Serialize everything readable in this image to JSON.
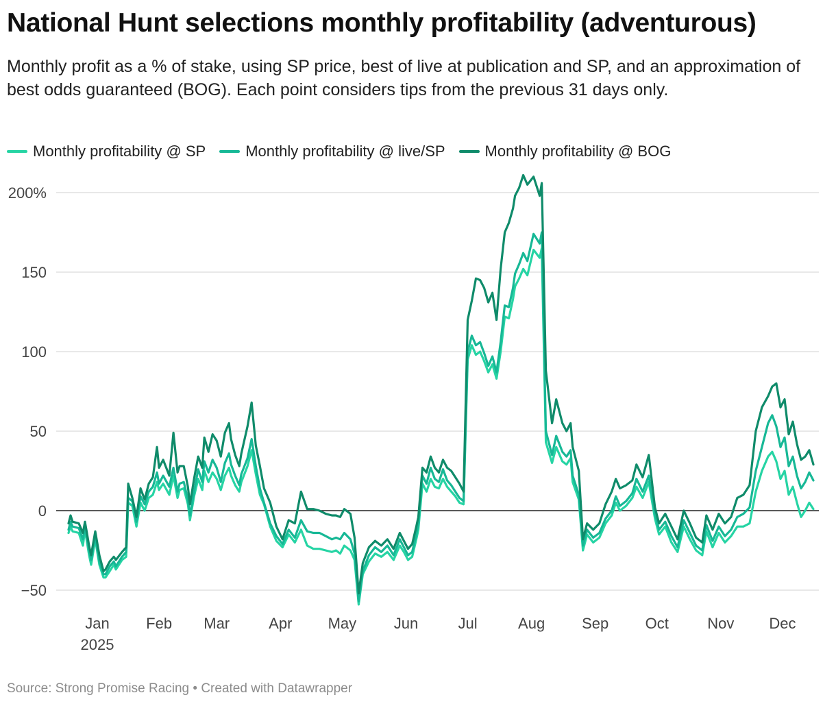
{
  "colors": {
    "sp": "#26d4a4",
    "live_sp": "#17b896",
    "bog": "#0f8b6a",
    "gridline": "#d9d9d9",
    "zero_line": "#222222"
  },
  "footer": {
    "source": "Source: Strong Promise Racing • Created with Datawrapper"
  },
  "chart_data": {
    "type": "line",
    "title": "National Hunt selections monthly profitability (adventurous)",
    "subtitle": "Monthly profit as a % of stake, using SP price, best of live at publication and SP, and an approximation of best odds guaranteed (BOG). Each point considers tips from the previous 31 days only.",
    "xlabel": "",
    "ylabel": "",
    "x_range_days": [
      0,
      363
    ],
    "ylim": [
      -55,
      215
    ],
    "y_ticks": [
      {
        "value": 200,
        "label": "200%"
      },
      {
        "value": 150,
        "label": "150"
      },
      {
        "value": 100,
        "label": "100"
      },
      {
        "value": 50,
        "label": "50"
      },
      {
        "value": 0,
        "label": "0"
      },
      {
        "value": -50,
        "label": "−50"
      }
    ],
    "x_ticks": [
      {
        "day": 14,
        "label": "Jan",
        "sublabel": "2025"
      },
      {
        "day": 44,
        "label": "Feb",
        "sublabel": ""
      },
      {
        "day": 72,
        "label": "Mar",
        "sublabel": ""
      },
      {
        "day": 103,
        "label": "Apr",
        "sublabel": ""
      },
      {
        "day": 133,
        "label": "May",
        "sublabel": ""
      },
      {
        "day": 164,
        "label": "Jun",
        "sublabel": ""
      },
      {
        "day": 194,
        "label": "Jul",
        "sublabel": ""
      },
      {
        "day": 225,
        "label": "Aug",
        "sublabel": ""
      },
      {
        "day": 256,
        "label": "Sep",
        "sublabel": ""
      },
      {
        "day": 286,
        "label": "Oct",
        "sublabel": ""
      },
      {
        "day": 317,
        "label": "Nov",
        "sublabel": ""
      },
      {
        "day": 347,
        "label": "Dec",
        "sublabel": ""
      }
    ],
    "x": [
      0,
      1,
      2,
      5,
      7,
      8,
      10,
      11,
      13,
      15,
      17,
      18,
      20,
      22,
      23,
      26,
      28,
      29,
      31,
      33,
      35,
      37,
      39,
      41,
      43,
      44,
      46,
      49,
      51,
      53,
      54,
      56,
      58,
      59,
      61,
      63,
      65,
      66,
      68,
      70,
      72,
      74,
      76,
      78,
      79,
      81,
      83,
      84,
      87,
      89,
      91,
      93,
      95,
      98,
      101,
      104,
      107,
      110,
      113,
      116,
      119,
      122,
      125,
      128,
      130,
      132,
      134,
      137,
      139,
      141,
      143,
      146,
      149,
      152,
      155,
      158,
      161,
      163,
      165,
      167,
      169,
      170,
      172,
      174,
      176,
      178,
      180,
      182,
      184,
      186,
      188,
      190,
      192,
      194,
      196,
      198,
      200,
      202,
      204,
      206,
      208,
      210,
      212,
      214,
      216,
      217,
      219,
      221,
      223,
      226,
      229,
      230,
      232,
      235,
      237,
      240,
      242,
      244,
      245,
      248,
      250,
      252,
      255,
      258,
      261,
      264,
      266,
      268,
      271,
      274,
      276,
      279,
      282,
      285,
      287,
      290,
      293,
      296,
      299,
      302,
      305,
      308,
      310,
      313,
      316,
      319,
      322,
      325,
      328,
      331,
      334,
      337,
      340,
      342,
      344,
      346,
      348,
      350,
      352,
      354,
      356,
      358,
      360,
      362
    ],
    "series": [
      {
        "name": "Monthly profitability @ SP",
        "color": "#26d4a4",
        "values": [
          -14,
          -10,
          -13,
          -14,
          -22,
          -12,
          -28,
          -34,
          -18,
          -34,
          -42,
          -42,
          -38,
          -34,
          -37,
          -31,
          -29,
          5,
          3,
          -10,
          5,
          0,
          8,
          10,
          18,
          13,
          17,
          10,
          22,
          8,
          13,
          14,
          4,
          -6,
          9,
          20,
          13,
          25,
          18,
          24,
          20,
          13,
          22,
          27,
          22,
          16,
          12,
          18,
          28,
          38,
          23,
          10,
          4,
          -10,
          -19,
          -23,
          -15,
          -20,
          -12,
          -22,
          -24,
          -24,
          -25,
          -26,
          -25,
          -27,
          -22,
          -25,
          -31,
          -59,
          -40,
          -32,
          -27,
          -29,
          -26,
          -31,
          -22,
          -26,
          -31,
          -29,
          -18,
          -12,
          17,
          12,
          20,
          15,
          14,
          20,
          15,
          12,
          9,
          5,
          4,
          95,
          104,
          98,
          100,
          94,
          87,
          92,
          83,
          100,
          122,
          121,
          133,
          141,
          146,
          152,
          148,
          164,
          159,
          165,
          43,
          30,
          40,
          31,
          29,
          33,
          18,
          7,
          -25,
          -15,
          -20,
          -17,
          -8,
          -3,
          5,
          0,
          3,
          8,
          15,
          8,
          18,
          -5,
          -15,
          -10,
          -20,
          -26,
          -10,
          -18,
          -25,
          -28,
          -13,
          -23,
          -14,
          -20,
          -16,
          -10,
          -10,
          -8,
          12,
          25,
          34,
          37,
          31,
          20,
          25,
          10,
          15,
          5,
          -4,
          0,
          5,
          1
        ]
      },
      {
        "name": "Monthly profitability @ live/SP",
        "color": "#17b896",
        "values": [
          -12,
          -7,
          -10,
          -11,
          -18,
          -10,
          -25,
          -31,
          -16,
          -32,
          -40,
          -40,
          -35,
          -32,
          -35,
          -29,
          -26,
          8,
          6,
          -7,
          9,
          4,
          12,
          15,
          24,
          17,
          22,
          15,
          27,
          12,
          17,
          18,
          7,
          -3,
          12,
          26,
          18,
          31,
          24,
          32,
          27,
          18,
          30,
          36,
          29,
          22,
          16,
          23,
          33,
          45,
          28,
          14,
          5,
          -8,
          -16,
          -21,
          -12,
          -17,
          -6,
          -13,
          -14,
          -14,
          -16,
          -18,
          -17,
          -18,
          -14,
          -18,
          -27,
          -57,
          -38,
          -28,
          -23,
          -26,
          -22,
          -28,
          -18,
          -23,
          -28,
          -26,
          -15,
          -8,
          22,
          17,
          27,
          20,
          18,
          26,
          19,
          16,
          12,
          8,
          6,
          100,
          110,
          104,
          106,
          99,
          91,
          97,
          87,
          106,
          129,
          128,
          140,
          149,
          155,
          162,
          157,
          174,
          168,
          175,
          50,
          35,
          47,
          37,
          34,
          38,
          22,
          10,
          -22,
          -12,
          -17,
          -14,
          -5,
          0,
          9,
          3,
          6,
          11,
          20,
          12,
          22,
          -2,
          -12,
          -7,
          -16,
          -23,
          -6,
          -14,
          -22,
          -25,
          -9,
          -19,
          -10,
          -16,
          -12,
          -4,
          -2,
          2,
          25,
          40,
          55,
          60,
          53,
          40,
          46,
          28,
          34,
          22,
          14,
          18,
          24,
          19
        ]
      },
      {
        "name": "Monthly profitability @ BOG",
        "color": "#0f8b6a",
        "values": [
          -8,
          -3,
          -7,
          -8,
          -14,
          -7,
          -22,
          -28,
          -13,
          -28,
          -38,
          -37,
          -32,
          -29,
          -31,
          -26,
          -23,
          17,
          8,
          -4,
          14,
          7,
          17,
          21,
          40,
          27,
          32,
          22,
          49,
          24,
          28,
          28,
          15,
          4,
          20,
          34,
          27,
          46,
          37,
          48,
          44,
          34,
          49,
          55,
          45,
          35,
          28,
          36,
          53,
          68,
          41,
          28,
          14,
          5,
          -10,
          -18,
          -6,
          -8,
          12,
          1,
          1,
          0,
          -2,
          -3,
          -3,
          -4,
          1,
          -2,
          -17,
          -52,
          -33,
          -23,
          -19,
          -22,
          -18,
          -24,
          -14,
          -19,
          -24,
          -21,
          -10,
          -4,
          27,
          24,
          34,
          27,
          24,
          32,
          27,
          25,
          21,
          17,
          12,
          120,
          132,
          146,
          145,
          140,
          131,
          137,
          120,
          152,
          175,
          181,
          190,
          198,
          203,
          211,
          205,
          210,
          198,
          206,
          88,
          55,
          70,
          55,
          50,
          55,
          40,
          25,
          -18,
          -8,
          -12,
          -8,
          4,
          12,
          20,
          14,
          16,
          19,
          29,
          21,
          35,
          2,
          -8,
          -2,
          -10,
          -18,
          0,
          -8,
          -17,
          -20,
          -3,
          -12,
          -2,
          -8,
          -4,
          8,
          10,
          16,
          50,
          65,
          72,
          78,
          80,
          65,
          70,
          48,
          56,
          42,
          32,
          34,
          38,
          29
        ]
      }
    ]
  }
}
